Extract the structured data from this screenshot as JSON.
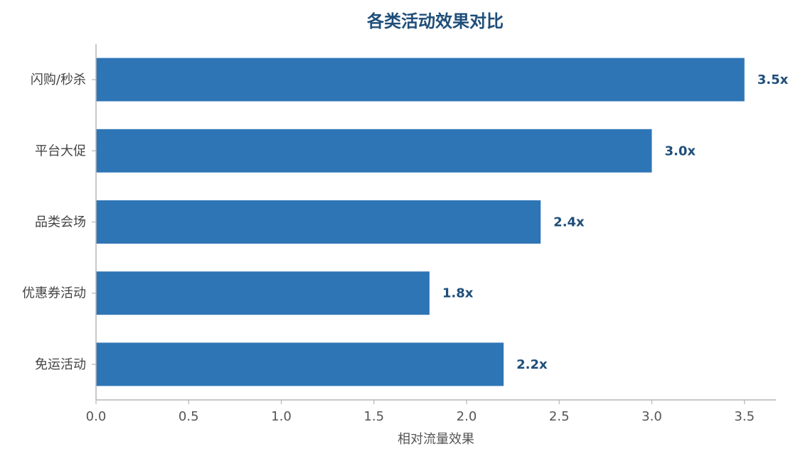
{
  "chart_data": {
    "type": "bar",
    "orientation": "horizontal",
    "title": "各类活动效果对比",
    "xlabel": "相对流量效果",
    "ylabel": "",
    "categories": [
      "闪购/秒杀",
      "平台大促",
      "品类会场",
      "优惠券活动",
      "免运活动"
    ],
    "values": [
      3.5,
      3.0,
      2.4,
      1.8,
      2.2
    ],
    "data_labels": [
      "3.5x",
      "3.0x",
      "2.4x",
      "1.8x",
      "2.2x"
    ],
    "xlim": [
      0,
      3.67
    ],
    "xticks": [
      0.0,
      0.5,
      1.0,
      1.5,
      2.0,
      2.5,
      3.0,
      3.5
    ],
    "xtick_labels": [
      "0.0",
      "0.5",
      "1.0",
      "1.5",
      "2.0",
      "2.5",
      "3.0",
      "3.5"
    ],
    "grid": false,
    "legend": "none",
    "bar_color": "#2e75b6",
    "title_color": "#1f4e79",
    "label_color": "#1f4e79"
  }
}
